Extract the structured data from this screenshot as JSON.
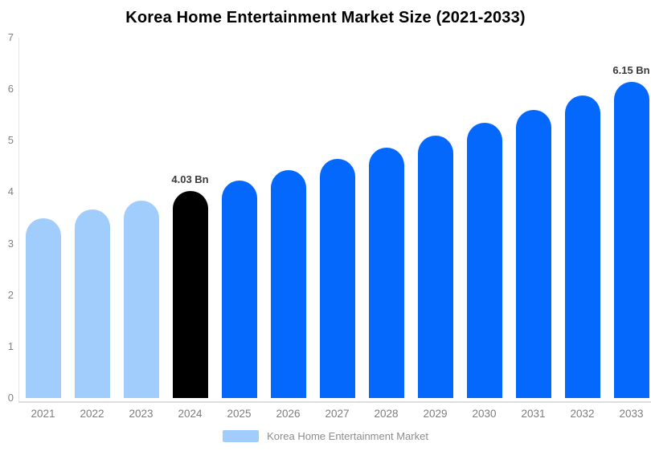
{
  "colors": {
    "historical_bars": "#A0CDFB",
    "base_year_bar": "#000000",
    "forecast_bars": "#0568FC",
    "axis_line": "#e4e4e4",
    "tick_text": "#828282",
    "annotation_text": "#3a3a3a",
    "background": "#ffffff"
  },
  "chart_data": {
    "type": "bar",
    "title": "Korea Home Entertainment Market Size (2021-2033)",
    "xlabel": "",
    "ylabel": "",
    "ylim": [
      0,
      7
    ],
    "yticks": [
      0,
      1,
      2,
      3,
      4,
      5,
      6,
      7
    ],
    "grid": "off",
    "legend_position": "bottom",
    "legend_label": "Korea Home Entertainment Market",
    "categories": [
      "2021",
      "2022",
      "2023",
      "2024",
      "2025",
      "2026",
      "2027",
      "2028",
      "2029",
      "2030",
      "2031",
      "2032",
      "2033"
    ],
    "values": [
      3.5,
      3.67,
      3.84,
      4.03,
      4.22,
      4.43,
      4.64,
      4.86,
      5.1,
      5.34,
      5.6,
      5.87,
      6.15
    ],
    "unit": "Bn",
    "bar_colors": [
      "#A0CDFB",
      "#A0CDFB",
      "#A0CDFB",
      "#000000",
      "#0568FC",
      "#0568FC",
      "#0568FC",
      "#0568FC",
      "#0568FC",
      "#0568FC",
      "#0568FC",
      "#0568FC",
      "#0568FC"
    ],
    "annotations": [
      {
        "category": "2024",
        "text": "4.03 Bn"
      },
      {
        "category": "2033",
        "text": "6.15 Bn"
      }
    ]
  }
}
